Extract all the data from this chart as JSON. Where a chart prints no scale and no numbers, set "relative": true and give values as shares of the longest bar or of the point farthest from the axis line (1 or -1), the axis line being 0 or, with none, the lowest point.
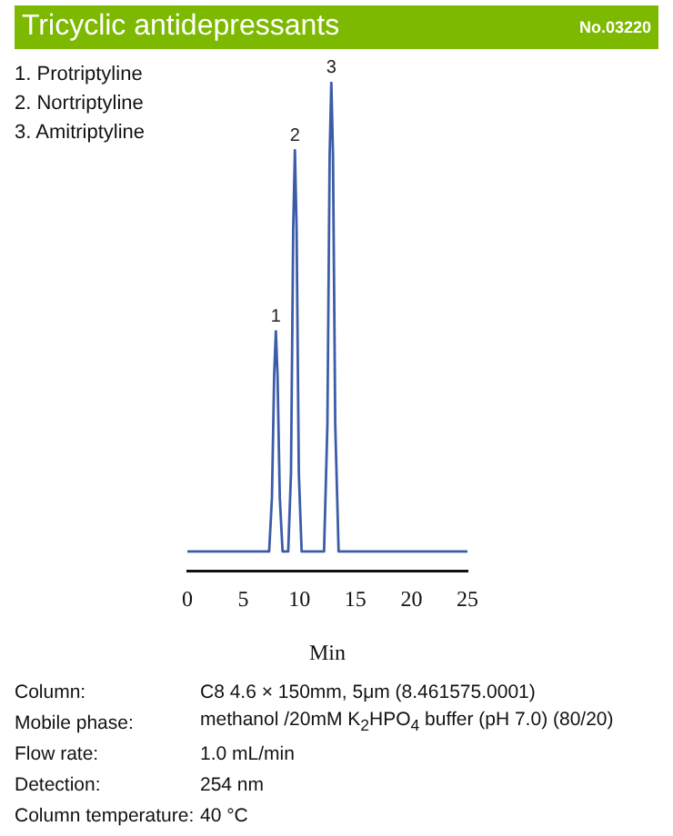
{
  "chart_data": {
    "type": "line",
    "title": "Tricyclic antidepressants",
    "subtitle": "No.03220",
    "xlabel": "Min",
    "relative": true,
    "xlim": [
      0,
      25
    ],
    "xticks": [
      0,
      5,
      10,
      15,
      20,
      25
    ],
    "grid": false,
    "legend": false,
    "marker": "none",
    "line_style": "solid",
    "color": "#3d5ca8",
    "x": [
      0,
      7.3,
      7.55,
      7.75,
      7.9,
      8.05,
      8.25,
      8.5,
      9.0,
      9.25,
      9.45,
      9.6,
      9.75,
      9.95,
      10.2,
      12.2,
      12.5,
      12.7,
      12.85,
      13.0,
      13.2,
      13.5,
      25
    ],
    "values": [
      0.04,
      0.04,
      0.15,
      0.4,
      0.49,
      0.4,
      0.15,
      0.04,
      0.04,
      0.2,
      0.7,
      0.86,
      0.7,
      0.2,
      0.04,
      0.04,
      0.3,
      0.85,
      1,
      0.85,
      0.3,
      0.04,
      0.04
    ],
    "annotations": [
      "1. Protriptyline",
      "2. Nortriptyline",
      "3. Amitriptyline",
      {
        "text": "1",
        "x": 7.9,
        "y": 0.49
      },
      {
        "text": "2",
        "x": 9.6,
        "y": 0.86
      },
      {
        "text": "3",
        "x": 12.85,
        "y": 1
      },
      "Column:",
      "C8 4.6 × 150mm, 5μm (8.461575.0001)",
      "Mobile phase:",
      "methanol /20mM K$_{2}$HPO$_{4}$ buffer (pH 7.0)  (80/20)",
      "Flow rate:",
      "1.0 mL/min",
      "Detection:",
      "254 nm",
      "Column temperature:",
      "40 °C"
    ]
  }
}
